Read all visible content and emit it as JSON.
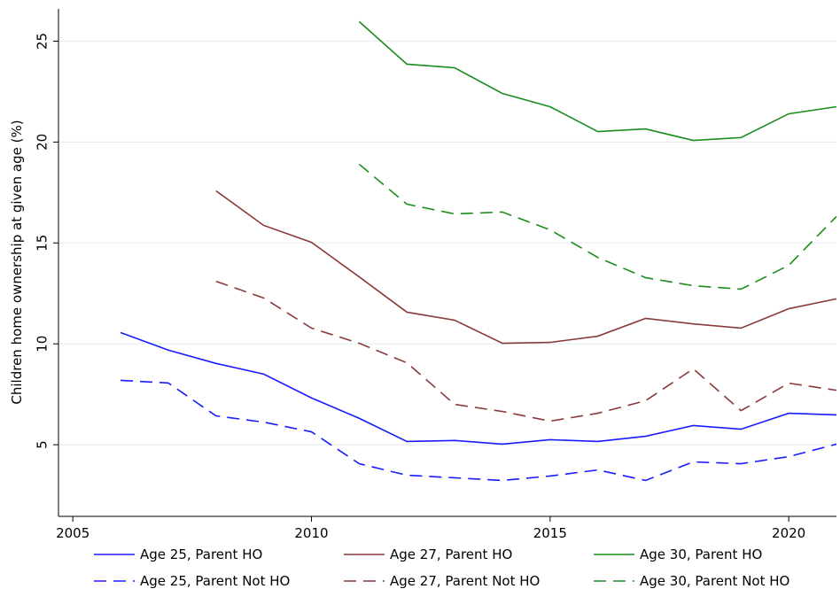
{
  "chart_data": {
    "type": "line",
    "y_label": "Children home ownership at given age (%)",
    "x": [
      2006,
      2007,
      2008,
      2009,
      2010,
      2011,
      2012,
      2013,
      2014,
      2015,
      2016,
      2017,
      2018,
      2019,
      2020,
      2021
    ],
    "xlim": [
      2004.7,
      2021
    ],
    "xticks": [
      2005,
      2010,
      2015,
      2020
    ],
    "ylim": [
      1.45,
      26.6
    ],
    "yticks": [
      5,
      10,
      15,
      20,
      25
    ],
    "grid": true,
    "legend": "bottom",
    "series": [
      {
        "name": "Age 25, Parent HO",
        "color": "#1a1aff",
        "dashed": false,
        "values": [
          10.56,
          9.69,
          9.03,
          8.5,
          7.32,
          6.31,
          5.16,
          5.21,
          5.03,
          5.25,
          5.16,
          5.42,
          5.95,
          5.77,
          6.56,
          6.48
        ]
      },
      {
        "name": "Age 27, Parent HO",
        "color": "#8b3a3a",
        "dashed": false,
        "values": [
          null,
          null,
          17.58,
          15.87,
          15.03,
          13.32,
          11.57,
          11.17,
          10.03,
          10.07,
          10.38,
          11.26,
          10.99,
          10.78,
          11.74,
          12.23
        ]
      },
      {
        "name": "Age 30, Parent HO",
        "color": "#1a8c1a",
        "dashed": false,
        "values": [
          null,
          null,
          null,
          null,
          null,
          25.97,
          23.86,
          23.68,
          22.41,
          21.75,
          20.52,
          20.65,
          20.08,
          20.22,
          21.4,
          21.75
        ]
      },
      {
        "name": "Age 25, Parent Not HO",
        "color": "#1a1aff",
        "dashed": true,
        "values": [
          8.19,
          8.06,
          6.43,
          6.12,
          5.64,
          4.06,
          3.49,
          3.36,
          3.23,
          3.45,
          3.75,
          3.23,
          4.15,
          4.06,
          4.41,
          5.03
        ]
      },
      {
        "name": "Age 27, Parent Not HO",
        "color": "#8b3a3a",
        "dashed": true,
        "values": [
          null,
          null,
          13.1,
          12.27,
          10.78,
          10.03,
          9.06,
          7.0,
          6.65,
          6.17,
          6.56,
          7.18,
          8.76,
          6.69,
          8.05,
          7.7
        ]
      },
      {
        "name": "Age 30, Parent Not HO",
        "color": "#1a8c1a",
        "dashed": true,
        "values": [
          null,
          null,
          null,
          null,
          null,
          18.9,
          16.92,
          16.44,
          16.53,
          15.65,
          14.28,
          13.28,
          12.88,
          12.71,
          13.89,
          16.31
        ]
      }
    ]
  }
}
